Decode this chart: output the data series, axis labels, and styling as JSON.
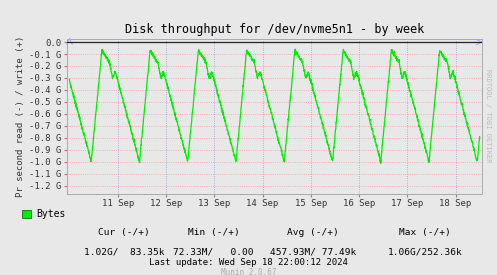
{
  "title": "Disk throughput for /dev/nvme5n1 - by week",
  "ylabel": "Pr second read (-) / write (+)",
  "bg_color": "#e8e8e8",
  "plot_bg_color": "#e8e8e8",
  "hgrid_color": "#ff9999",
  "vgrid_color": "#9999cc",
  "line_color": "#00ee00",
  "border_color": "#aaaaaa",
  "top_line_color": "#222222",
  "ytick_vals": [
    0.0,
    -0.1,
    -0.2,
    -0.3,
    -0.4,
    -0.5,
    -0.6,
    -0.7,
    -0.8,
    -0.9,
    -1.0,
    -1.1,
    -1.2
  ],
  "ytick_labels": [
    "0.0",
    "-0.1 G",
    "-0.2 G",
    "-0.3 G",
    "-0.4 G",
    "-0.5 G",
    "-0.6 G",
    "-0.7 G",
    "-0.8 G",
    "-0.9 G",
    "-1.0 G",
    "-1.1 G",
    "-1.2 G"
  ],
  "xtick_labels": [
    "11 Sep",
    "12 Sep",
    "13 Sep",
    "14 Sep",
    "15 Sep",
    "16 Sep",
    "17 Sep",
    "18 Sep"
  ],
  "legend_label": "Bytes",
  "cur_text": "Cur (-/+)",
  "cur_val": "1.02G/  83.35k",
  "min_text": "Min (-/+)",
  "min_val": "72.33M/   0.00",
  "avg_text": "Avg (-/+)",
  "avg_val": "457.93M/ 77.49k",
  "max_text": "Max (-/+)",
  "max_val": "1.06G/252.36k",
  "last_update": "Last update: Wed Sep 18 22:00:12 2024",
  "munin_version": "Munin 2.0.67",
  "rrdtool_text": "RRDTOOL / TOBI OETIKER"
}
